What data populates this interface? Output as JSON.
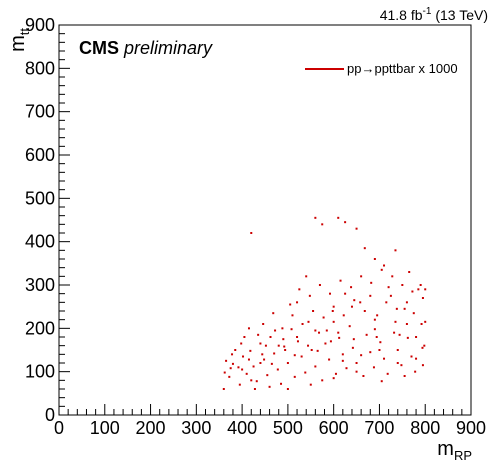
{
  "header": {
    "lumi_value": "41.8 fb",
    "lumi_exp": "-1",
    "lumi_energy": " (13 TeV)"
  },
  "cms_label": {
    "bold": "CMS",
    "italic": "preliminary"
  },
  "legend": {
    "entry": "pp→ppttbar x 1000",
    "color": "#cc0000",
    "position": "top-right"
  },
  "chart_data": {
    "type": "scatter",
    "xlabel": "m",
    "xlabel_sub": "RP",
    "ylabel": "m",
    "ylabel_sub": "tt",
    "xlim": [
      0,
      900
    ],
    "ylim": [
      0,
      900
    ],
    "xticks": [
      0,
      100,
      200,
      300,
      400,
      500,
      600,
      700,
      800,
      900
    ],
    "yticks": [
      0,
      100,
      200,
      300,
      400,
      500,
      600,
      700,
      800,
      900
    ],
    "grid": false,
    "series": [
      {
        "name": "pp→ppttbar x 1000",
        "color": "#cc0000",
        "points": [
          [
            360,
            60
          ],
          [
            372,
            88
          ],
          [
            380,
            118
          ],
          [
            395,
            70
          ],
          [
            402,
            135
          ],
          [
            410,
            95
          ],
          [
            418,
            148
          ],
          [
            425,
            112
          ],
          [
            432,
            78
          ],
          [
            440,
            165
          ],
          [
            448,
            128
          ],
          [
            455,
            92
          ],
          [
            462,
            180
          ],
          [
            470,
            142
          ],
          [
            478,
            105
          ],
          [
            485,
            72
          ],
          [
            492,
            158
          ],
          [
            500,
            120
          ],
          [
            508,
            198
          ],
          [
            515,
            88
          ],
          [
            522,
            170
          ],
          [
            530,
            135
          ],
          [
            538,
            98
          ],
          [
            545,
            215
          ],
          [
            552,
            150
          ],
          [
            560,
            112
          ],
          [
            568,
            190
          ],
          [
            575,
            80
          ],
          [
            582,
            165
          ],
          [
            590,
            128
          ],
          [
            598,
            240
          ],
          [
            605,
            95
          ],
          [
            612,
            178
          ],
          [
            620,
            140
          ],
          [
            628,
            108
          ],
          [
            635,
            205
          ],
          [
            642,
            155
          ],
          [
            650,
            120
          ],
          [
            658,
            260
          ],
          [
            665,
            90
          ],
          [
            672,
            185
          ],
          [
            680,
            145
          ],
          [
            688,
            110
          ],
          [
            695,
            230
          ],
          [
            702,
            168
          ],
          [
            710,
            130
          ],
          [
            718,
            95
          ],
          [
            725,
            275
          ],
          [
            732,
            190
          ],
          [
            740,
            150
          ],
          [
            748,
            115
          ],
          [
            755,
            245
          ],
          [
            762,
            178
          ],
          [
            770,
            135
          ],
          [
            778,
            100
          ],
          [
            785,
            290
          ],
          [
            792,
            210
          ],
          [
            798,
            160
          ],
          [
            365,
            125
          ],
          [
            385,
            150
          ],
          [
            405,
            180
          ],
          [
            428,
            60
          ],
          [
            446,
            210
          ],
          [
            468,
            235
          ],
          [
            488,
            200
          ],
          [
            505,
            255
          ],
          [
            525,
            290
          ],
          [
            548,
            275
          ],
          [
            570,
            300
          ],
          [
            592,
            280
          ],
          [
            615,
            310
          ],
          [
            638,
            295
          ],
          [
            660,
            320
          ],
          [
            682,
            305
          ],
          [
            705,
            335
          ],
          [
            728,
            320
          ],
          [
            750,
            300
          ],
          [
            772,
            285
          ],
          [
            795,
            270
          ],
          [
            800,
            215
          ],
          [
            780,
            180
          ],
          [
            760,
            210
          ],
          [
            738,
            245
          ],
          [
            715,
            260
          ],
          [
            690,
            220
          ],
          [
            668,
            240
          ],
          [
            645,
            265
          ],
          [
            622,
            230
          ],
          [
            600,
            250
          ],
          [
            578,
            225
          ],
          [
            555,
            240
          ],
          [
            532,
            210
          ],
          [
            510,
            230
          ],
          [
            490,
            175
          ],
          [
            472,
            195
          ],
          [
            452,
            160
          ],
          [
            435,
            185
          ],
          [
            415,
            200
          ],
          [
            398,
            165
          ],
          [
            378,
            140
          ],
          [
            560,
            455
          ],
          [
            575,
            440
          ],
          [
            610,
            455
          ],
          [
            625,
            445
          ],
          [
            650,
            430
          ],
          [
            668,
            385
          ],
          [
            690,
            360
          ],
          [
            710,
            345
          ],
          [
            735,
            380
          ],
          [
            765,
            330
          ],
          [
            790,
            300
          ],
          [
            800,
            290
          ],
          [
            420,
            420
          ],
          [
            362,
            98
          ],
          [
            392,
            110
          ],
          [
            444,
            140
          ],
          [
            494,
            150
          ],
          [
            544,
            160
          ],
          [
            594,
            170
          ],
          [
            644,
            175
          ],
          [
            694,
            180
          ],
          [
            744,
            185
          ],
          [
            794,
            155
          ],
          [
            760,
            260
          ],
          [
            720,
            295
          ],
          [
            680,
            275
          ],
          [
            640,
            250
          ],
          [
            600,
            215
          ],
          [
            560,
            195
          ],
          [
            520,
            180
          ],
          [
            480,
            160
          ],
          [
            440,
            120
          ],
          [
            400,
            105
          ],
          [
            620,
            125
          ],
          [
            660,
            138
          ],
          [
            700,
            150
          ],
          [
            740,
            120
          ],
          [
            780,
            130
          ],
          [
            650,
            100
          ],
          [
            600,
            85
          ],
          [
            550,
            70
          ],
          [
            500,
            60
          ],
          [
            460,
            65
          ],
          [
            420,
            80
          ],
          [
            705,
            78
          ],
          [
            755,
            90
          ],
          [
            795,
            115
          ],
          [
            690,
            198
          ],
          [
            610,
            190
          ],
          [
            565,
            148
          ],
          [
            515,
            138
          ],
          [
            465,
            118
          ],
          [
            415,
            128
          ],
          [
            375,
            108
          ],
          [
            540,
            320
          ],
          [
            520,
            260
          ],
          [
            625,
            280
          ],
          [
            585,
            195
          ],
          [
            735,
            215
          ],
          [
            775,
            235
          ]
        ]
      }
    ]
  }
}
